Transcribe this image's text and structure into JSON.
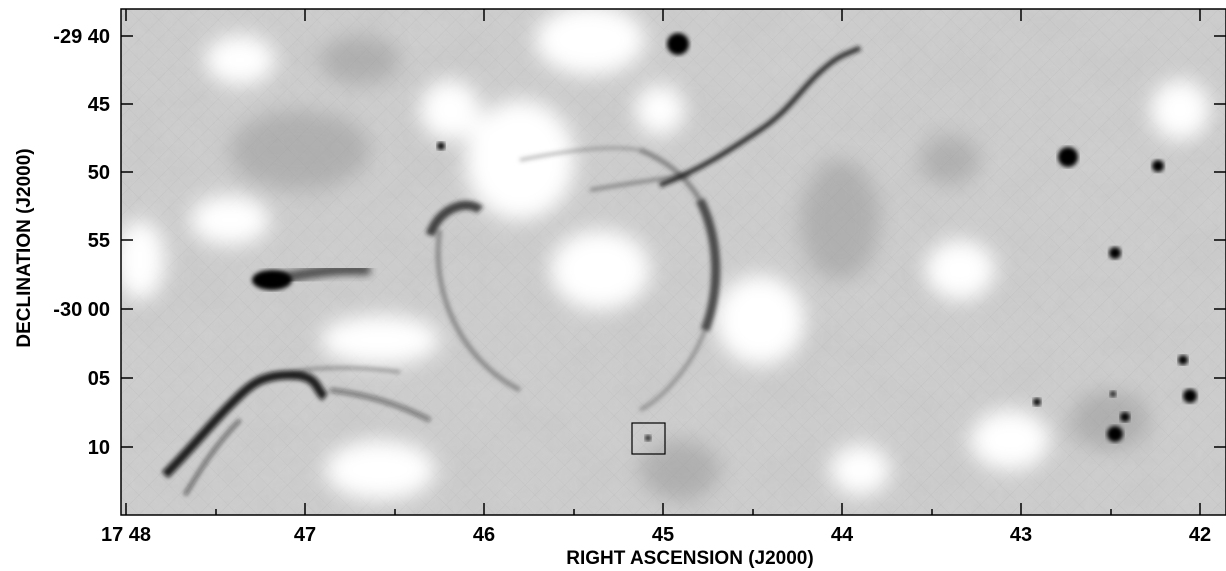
{
  "figure": {
    "xlabel": "RIGHT ASCENSION (J2000)",
    "ylabel": "DECLINATION (J2000)",
    "x_ticks": [
      "17 48",
      "47",
      "46",
      "45",
      "44",
      "43",
      "42"
    ],
    "y_ticks": [
      "-29 40",
      "45",
      "50",
      "55",
      "-30 00",
      "05",
      "10"
    ],
    "colormap": "greyscale (white = low, black = high emission)",
    "marker": "square-box"
  }
}
